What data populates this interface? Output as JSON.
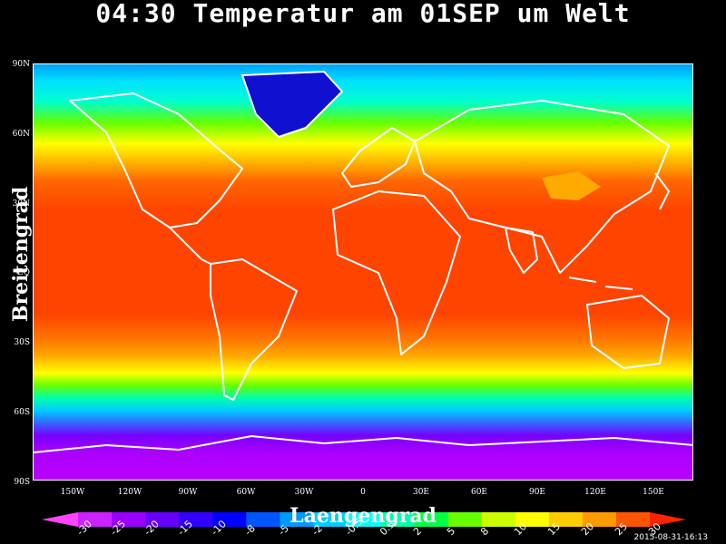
{
  "title": "04:30 Temperatur am 01SEP um Welt",
  "axes": {
    "ylabel": "Breitengrad",
    "xlabel": "Laengengrad",
    "yticks": [
      "90N",
      "60N",
      "30N",
      "EQ",
      "30S",
      "60S",
      "90S"
    ],
    "xticks": [
      "150W",
      "120W",
      "90W",
      "60W",
      "30W",
      "0",
      "30E",
      "60E",
      "90E",
      "120E",
      "150E"
    ]
  },
  "colorbar": {
    "labels": [
      "-30",
      "-25",
      "-20",
      "-15",
      "-10",
      "-8",
      "-5",
      "-2",
      "-0.5",
      "0.5",
      "2",
      "5",
      "8",
      "10",
      "15",
      "20",
      "25",
      "30"
    ],
    "colors": [
      "#ff44ff",
      "#cc22ff",
      "#9900ff",
      "#6600ff",
      "#3300ff",
      "#0000ff",
      "#0055ff",
      "#0099ff",
      "#00ccff",
      "#00ffff",
      "#00ffaa",
      "#00ff44",
      "#66ff00",
      "#ccff00",
      "#ffff00",
      "#ffcc00",
      "#ff9900",
      "#ff5500",
      "#ff2200"
    ]
  },
  "timestamp": "2015-08-31-16:13"
}
